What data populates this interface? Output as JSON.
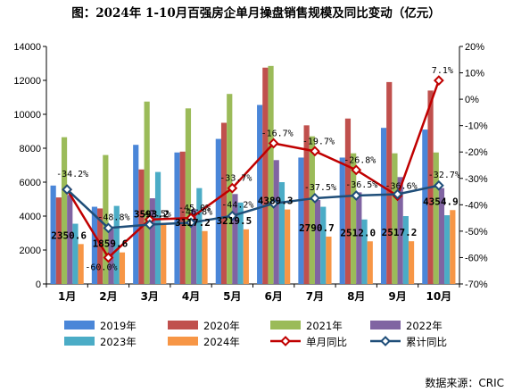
{
  "chart_data": {
    "type": "bar",
    "title": "图：2024年 1-10月百强房企单月操盘销售规模及同比变动（亿元）",
    "categories": [
      "1月",
      "2月",
      "3月",
      "4月",
      "5月",
      "6月",
      "7月",
      "8月",
      "9月",
      "10月"
    ],
    "ylim": [
      0,
      14000
    ],
    "yticks": [
      "0",
      "2000",
      "4000",
      "6000",
      "8000",
      "10000",
      "12000",
      "14000"
    ],
    "y2lim": [
      -70,
      20
    ],
    "y2ticks": [
      "-70%",
      "-60%",
      "-50%",
      "-40%",
      "-30%",
      "-20%",
      "-10%",
      "0%",
      "10%",
      "20%"
    ],
    "series": [
      {
        "name": "2019年",
        "kind": "bar",
        "color": "#4a86d8",
        "values": [
          5800,
          4550,
          8200,
          7750,
          8550,
          10550,
          7450,
          7450,
          9200,
          9100
        ]
      },
      {
        "name": "2020年",
        "kind": "bar",
        "color": "#c0504d",
        "values": [
          5100,
          4450,
          6750,
          7800,
          9500,
          12750,
          9350,
          9750,
          11900,
          11400
        ]
      },
      {
        "name": "2021年",
        "kind": "bar",
        "color": "#9bbb59",
        "values": [
          8650,
          7600,
          10750,
          10350,
          11200,
          12850,
          8700,
          7700,
          7700,
          7750
        ]
      },
      {
        "name": "2022年",
        "kind": "bar",
        "color": "#8064a2",
        "values": [
          5250,
          3250,
          5050,
          4400,
          5300,
          7300,
          4950,
          5400,
          6300,
          5650
        ]
      },
      {
        "name": "2023年",
        "kind": "bar",
        "color": "#4bacc6",
        "values": [
          3550,
          4600,
          6600,
          5650,
          4800,
          6000,
          4550,
          3800,
          4000,
          4050
        ]
      },
      {
        "name": "2024年",
        "kind": "bar",
        "color": "#f79646",
        "values": [
          2350.6,
          1859.6,
          3593.2,
          3117.2,
          3219.5,
          4389.3,
          2790.7,
          2512.0,
          2517.2,
          4354.9
        ]
      },
      {
        "name": "单月同比",
        "kind": "line",
        "color": "#c00000",
        "values": [
          -34.2,
          -60.0,
          -45.6,
          -45.0,
          -33.7,
          -16.7,
          -19.7,
          -26.8,
          -36.6,
          7.1
        ]
      },
      {
        "name": "累计同比",
        "kind": "line",
        "color": "#1f4e79",
        "values": [
          -34.2,
          -48.8,
          -47.5,
          -46.8,
          -44.2,
          -39.5,
          -37.5,
          -36.5,
          -36.0,
          -32.7
        ]
      }
    ],
    "value_labels": [
      "2350.6",
      "1859.6",
      "3593.2",
      "3117.2",
      "3219.5",
      "4389.3",
      "2790.7",
      "2512.0",
      "2517.2",
      "4354.9"
    ],
    "monthly_yoy_labels": [
      "",
      "-60.0%",
      "",
      "-45.0%",
      "-33.7%",
      "-16.7%",
      "-19.7%",
      "-26.8%",
      "-36.6%",
      "7.1%"
    ],
    "cumulative_yoy_labels": [
      "-34.2%",
      "-48.8%",
      "-47.5%",
      "-46.8%",
      "-44.2%",
      "",
      "-37.5%",
      "-36.5%",
      "",
      "-32.7%"
    ],
    "legend_position": "bottom",
    "source": "数据来源：CRIC"
  }
}
